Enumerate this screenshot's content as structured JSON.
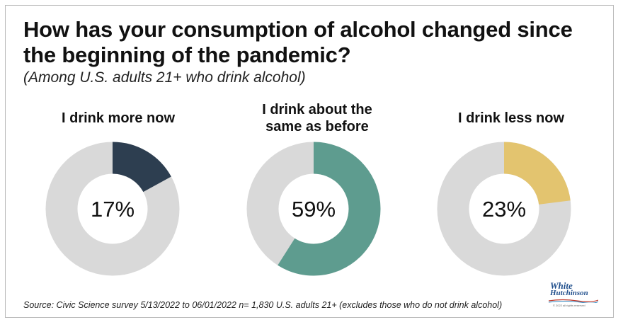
{
  "title": "How has your consumption of alcohol changed since the beginning of the pandemic?",
  "subtitle": "(Among U.S. adults 21+ who drink alcohol)",
  "source": "Source: Civic Science survey 5/13/2022 to 06/01/2022 n= 1,830 U.S. adults 21+ (excludes those who do not drink alcohol)",
  "logo": {
    "line1": "White",
    "line2": "Hutchinson",
    "line3": "© 2022 all rights reserved"
  },
  "colors": {
    "track": "#d9d9d9",
    "more": "#2d3e50",
    "same": "#5e9c8f",
    "less": "#e3c46f"
  },
  "chart_data": [
    {
      "type": "pie",
      "variant": "donut",
      "title": "I drink more now",
      "value": 17,
      "label": "17%",
      "color": "#2d3e50"
    },
    {
      "type": "pie",
      "variant": "donut",
      "title": "I drink about the same as before",
      "value": 59,
      "label": "59%",
      "color": "#5e9c8f"
    },
    {
      "type": "pie",
      "variant": "donut",
      "title": "I drink less now",
      "value": 23,
      "label": "23%",
      "color": "#e3c46f"
    }
  ]
}
